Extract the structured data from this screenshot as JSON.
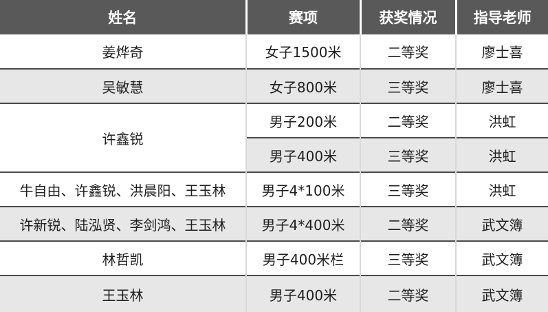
{
  "table": {
    "headers": [
      "姓名",
      "赛项",
      "获奖情况",
      "指导老师"
    ],
    "rows": [
      {
        "name": "姜烨奇",
        "event": "女子1500米",
        "award": "二等奖",
        "teacher": "廖士喜"
      },
      {
        "name": "吴敏慧",
        "event": "女子800米",
        "award": "三等奖",
        "teacher": "廖士喜"
      },
      {
        "name": "许鑫锐",
        "name_rowspan": 2,
        "event": "男子200米",
        "award": "二等奖",
        "teacher": "洪虹"
      },
      {
        "event": "男子400米",
        "award": "三等奖",
        "teacher": "洪虹"
      },
      {
        "name": "牛自由、许鑫锐、洪晨阳、王玉林",
        "event": "男子4*100米",
        "award": "三等奖",
        "teacher": "洪虹"
      },
      {
        "name": "许新锐、陆泓贤、李剑鸿、王玉林",
        "event": "男子4*400米",
        "award": "二等奖",
        "teacher": "武文簿"
      },
      {
        "name": "林哲凯",
        "event": "男子400米栏",
        "award": "三等奖",
        "teacher": "武文簿"
      },
      {
        "name": "王玉林",
        "event": "男子400米",
        "award": "二等奖",
        "teacher": "武文簿"
      }
    ]
  },
  "colors": {
    "header_bg": "#595959",
    "header_text": "#ffffff",
    "row_bg": "#ffffff",
    "row_alt_bg": "#e7e7e7",
    "border_dark": "#4a4a4a",
    "border_light": "#d9d9d9",
    "body_text": "#1f1f1f"
  }
}
